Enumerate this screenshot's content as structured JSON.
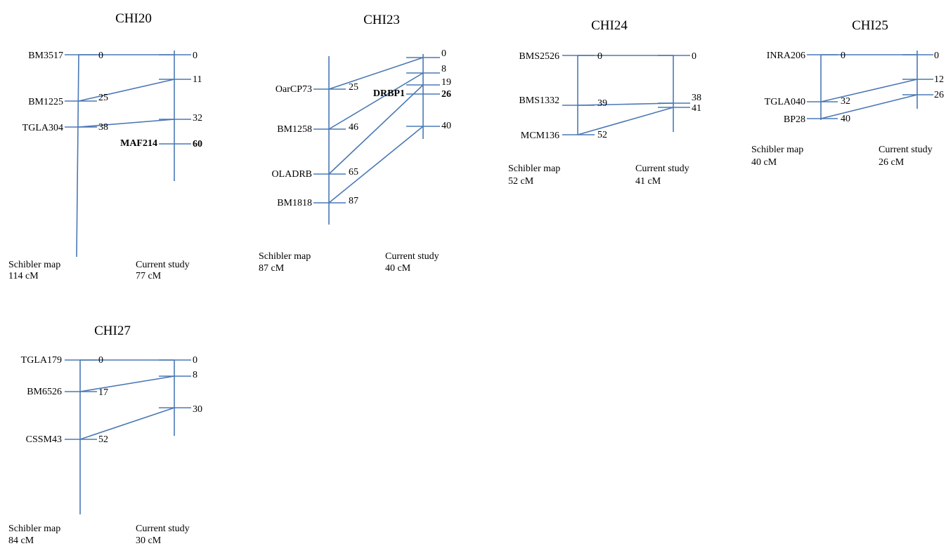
{
  "line_color": "#4a78b5",
  "left_map_label": "Schibler map",
  "right_map_label": "Current study",
  "maps": [
    {
      "title": "CHI20",
      "left_length": "114 cM",
      "right_length": "77 cM",
      "left_markers": [
        {
          "name": "BM3517",
          "pos": "0"
        },
        {
          "name": "BM1225",
          "pos": "25"
        },
        {
          "name": "TGLA304",
          "pos": "38"
        }
      ],
      "right_markers": [
        {
          "name": "",
          "pos": "0"
        },
        {
          "name": "",
          "pos": "11"
        },
        {
          "name": "",
          "pos": "32"
        },
        {
          "name": "MAF214",
          "pos": "60",
          "bold": true
        }
      ]
    },
    {
      "title": "CHI23",
      "left_length": "87 cM",
      "right_length": "40 cM",
      "left_markers": [
        {
          "name": "OarCP73",
          "pos": "25"
        },
        {
          "name": "BM1258",
          "pos": "46"
        },
        {
          "name": "OLADRB",
          "pos": "65"
        },
        {
          "name": "BM1818",
          "pos": "87"
        }
      ],
      "right_markers": [
        {
          "name": "",
          "pos": "0"
        },
        {
          "name": "",
          "pos": "8"
        },
        {
          "name": "",
          "pos": "19"
        },
        {
          "name": "DRBP1",
          "pos": "26",
          "bold": true
        },
        {
          "name": "",
          "pos": "40"
        }
      ]
    },
    {
      "title": "CHI24",
      "left_length": "52 cM",
      "right_length": "41 cM",
      "left_markers": [
        {
          "name": "BMS2526",
          "pos": "0"
        },
        {
          "name": "BMS1332",
          "pos": "39"
        },
        {
          "name": "MCM136",
          "pos": "52"
        }
      ],
      "right_markers": [
        {
          "name": "",
          "pos": "0"
        },
        {
          "name": "",
          "pos": "38"
        },
        {
          "name": "",
          "pos": "41"
        }
      ]
    },
    {
      "title": "CHI25",
      "left_length": "40 cM",
      "right_length": "26 cM",
      "left_markers": [
        {
          "name": "INRA206",
          "pos": "0"
        },
        {
          "name": "TGLA040",
          "pos": "32"
        },
        {
          "name": "BP28",
          "pos": "40"
        }
      ],
      "right_markers": [
        {
          "name": "",
          "pos": "0"
        },
        {
          "name": "",
          "pos": "12"
        },
        {
          "name": "",
          "pos": "26"
        }
      ]
    },
    {
      "title": "CHI27",
      "left_length": "84 cM",
      "right_length": "30 cM",
      "left_markers": [
        {
          "name": "TGLA179",
          "pos": "0"
        },
        {
          "name": "BM6526",
          "pos": "17"
        },
        {
          "name": "CSSM43",
          "pos": "52"
        }
      ],
      "right_markers": [
        {
          "name": "",
          "pos": "0"
        },
        {
          "name": "",
          "pos": "8"
        },
        {
          "name": "",
          "pos": "30"
        }
      ]
    }
  ]
}
